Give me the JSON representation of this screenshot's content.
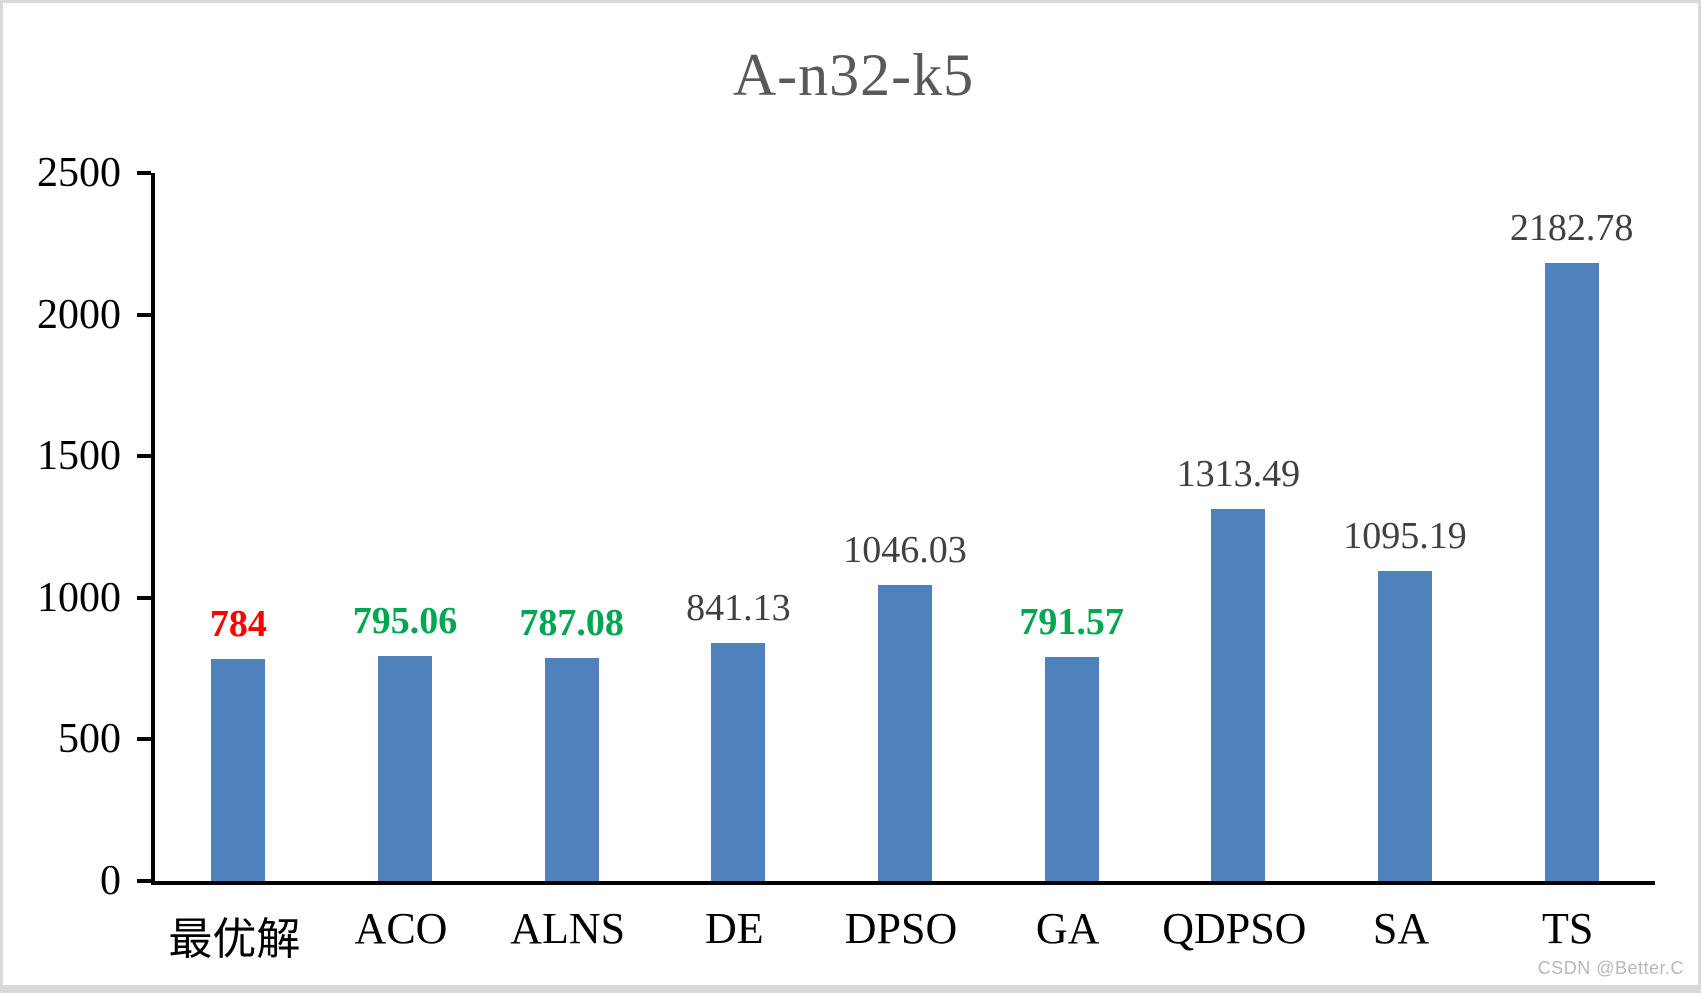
{
  "chart_data": {
    "type": "bar",
    "title": "A-n32-k5",
    "categories": [
      "最优解",
      "ACO",
      "ALNS",
      "DE",
      "DPSO",
      "GA",
      "QDPSO",
      "SA",
      "TS"
    ],
    "values": [
      784,
      795.06,
      787.08,
      841.13,
      1046.03,
      791.57,
      1313.49,
      1095.19,
      2182.78
    ],
    "data_labels": [
      "784",
      "795.06",
      "787.08",
      "841.13",
      "1046.03",
      "791.57",
      "1313.49",
      "1095.19",
      "2182.78"
    ],
    "label_colors": [
      "#FF0000",
      "#00A650",
      "#00A650",
      "#404040",
      "#404040",
      "#00A650",
      "#404040",
      "#404040",
      "#404040"
    ],
    "label_bold": [
      true,
      true,
      true,
      false,
      false,
      true,
      false,
      false,
      false
    ],
    "xlabel": "",
    "ylabel": "",
    "ylim": [
      0,
      2500
    ],
    "y_ticks": [
      "0",
      "500",
      "1000",
      "1500",
      "2000",
      "2500"
    ],
    "grid": false,
    "legend": "none",
    "bar_color": "#4F81BD",
    "title_color": "#595959",
    "axis_color": "#000000"
  },
  "watermark": {
    "text": "CSDN @Better.C"
  }
}
